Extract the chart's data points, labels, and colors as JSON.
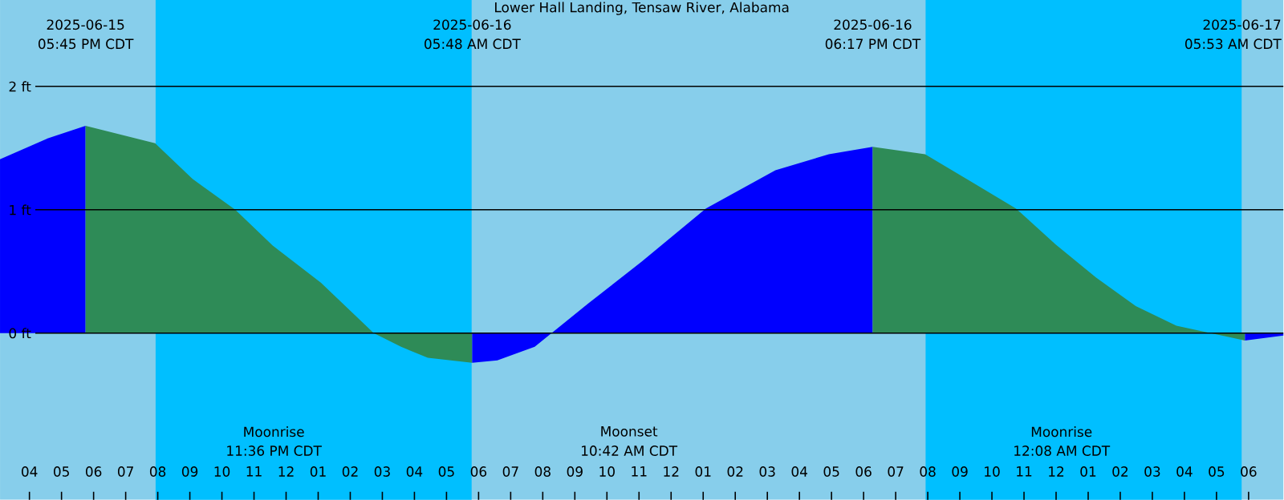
{
  "chart_data": {
    "type": "area",
    "title": "Lower Hall Landing, Tensaw River, Alabama",
    "xlim": [
      "2025-06-15T15:05",
      "2025-06-17T07:05"
    ],
    "ylim": [
      -1.35,
      2.7
    ],
    "yticks": [
      {
        "value": 0,
        "label": "0 ft"
      },
      {
        "value": 1,
        "label": "1 ft"
      },
      {
        "value": 2,
        "label": "2 ft"
      }
    ],
    "xticks": [
      {
        "value": "2025-06-15T16:00",
        "label": "04"
      },
      {
        "value": "2025-06-15T17:00",
        "label": "05"
      },
      {
        "value": "2025-06-15T18:00",
        "label": "06"
      },
      {
        "value": "2025-06-15T19:00",
        "label": "07"
      },
      {
        "value": "2025-06-15T20:00",
        "label": "08"
      },
      {
        "value": "2025-06-15T21:00",
        "label": "09"
      },
      {
        "value": "2025-06-15T22:00",
        "label": "10"
      },
      {
        "value": "2025-06-15T23:00",
        "label": "11"
      },
      {
        "value": "2025-06-16T00:00",
        "label": "12"
      },
      {
        "value": "2025-06-16T01:00",
        "label": "01"
      },
      {
        "value": "2025-06-16T02:00",
        "label": "02"
      },
      {
        "value": "2025-06-16T03:00",
        "label": "03"
      },
      {
        "value": "2025-06-16T04:00",
        "label": "04"
      },
      {
        "value": "2025-06-16T05:00",
        "label": "05"
      },
      {
        "value": "2025-06-16T06:00",
        "label": "06"
      },
      {
        "value": "2025-06-16T07:00",
        "label": "07"
      },
      {
        "value": "2025-06-16T08:00",
        "label": "08"
      },
      {
        "value": "2025-06-16T09:00",
        "label": "09"
      },
      {
        "value": "2025-06-16T10:00",
        "label": "10"
      },
      {
        "value": "2025-06-16T11:00",
        "label": "11"
      },
      {
        "value": "2025-06-16T12:00",
        "label": "12"
      },
      {
        "value": "2025-06-16T13:00",
        "label": "01"
      },
      {
        "value": "2025-06-16T14:00",
        "label": "02"
      },
      {
        "value": "2025-06-16T15:00",
        "label": "03"
      },
      {
        "value": "2025-06-16T16:00",
        "label": "04"
      },
      {
        "value": "2025-06-16T17:00",
        "label": "05"
      },
      {
        "value": "2025-06-16T18:00",
        "label": "06"
      },
      {
        "value": "2025-06-16T19:00",
        "label": "07"
      },
      {
        "value": "2025-06-16T20:00",
        "label": "08"
      },
      {
        "value": "2025-06-16T21:00",
        "label": "09"
      },
      {
        "value": "2025-06-16T22:00",
        "label": "10"
      },
      {
        "value": "2025-06-16T23:00",
        "label": "11"
      },
      {
        "value": "2025-06-17T00:00",
        "label": "12"
      },
      {
        "value": "2025-06-17T01:00",
        "label": "01"
      },
      {
        "value": "2025-06-17T02:00",
        "label": "02"
      },
      {
        "value": "2025-06-17T03:00",
        "label": "03"
      },
      {
        "value": "2025-06-17T04:00",
        "label": "04"
      },
      {
        "value": "2025-06-17T05:00",
        "label": "05"
      },
      {
        "value": "2025-06-17T06:00",
        "label": "06"
      }
    ],
    "grid": "y",
    "series": [
      {
        "color": "#0000ff",
        "x": [
          "2025-06-15T15:05",
          "2025-06-15T16:35",
          "2025-06-15T17:45"
        ],
        "values": [
          1.41,
          1.58,
          1.68
        ]
      },
      {
        "color": "#2e8b57",
        "x": [
          "2025-06-15T17:45",
          "2025-06-15T19:55",
          "2025-06-15T21:05",
          "2025-06-15T22:25",
          "2025-06-15T23:35",
          "2025-06-16T01:05",
          "2025-06-16T02:44",
          "2025-06-16T03:35",
          "2025-06-16T04:25",
          "2025-06-16T05:48"
        ],
        "values": [
          1.68,
          1.54,
          1.25,
          1.0,
          0.71,
          0.41,
          0.0,
          -0.11,
          -0.2,
          -0.24
        ]
      },
      {
        "color": "#0000ff",
        "x": [
          "2025-06-16T05:48",
          "2025-06-16T06:35",
          "2025-06-16T07:45",
          "2025-06-16T09:25",
          "2025-06-16T11:05",
          "2025-06-16T13:05",
          "2025-06-16T15:15",
          "2025-06-16T16:55",
          "2025-06-16T18:17"
        ],
        "values": [
          -0.24,
          -0.22,
          -0.11,
          0.24,
          0.58,
          1.01,
          1.32,
          1.45,
          1.51
        ]
      },
      {
        "color": "#2e8b57",
        "x": [
          "2025-06-16T18:17",
          "2025-06-16T19:55",
          "2025-06-16T21:20",
          "2025-06-16T22:45",
          "2025-06-16T23:59",
          "2025-06-17T01:15",
          "2025-06-17T02:29",
          "2025-06-17T03:45",
          "2025-06-17T05:53"
        ],
        "values": [
          1.51,
          1.45,
          1.23,
          1.01,
          0.72,
          0.45,
          0.22,
          0.06,
          -0.06
        ]
      },
      {
        "color": "#0000ff",
        "x": [
          "2025-06-17T05:53",
          "2025-06-17T07:05"
        ],
        "values": [
          -0.06,
          -0.02
        ]
      }
    ],
    "bands": [
      {
        "axis": "x",
        "from": "2025-06-15T19:56",
        "to": "2025-06-16T05:47",
        "color": "#00bfff"
      },
      {
        "axis": "x",
        "from": "2025-06-16T19:56",
        "to": "2025-06-17T05:47",
        "color": "#00bfff"
      }
    ],
    "annotations": [
      "2025-06-15",
      "05:45 PM CDT",
      "2025-06-16",
      "05:48 AM CDT",
      "2025-06-16",
      "06:17 PM CDT",
      "2025-06-17",
      "05:53 AM CDT",
      "Moonrise",
      "11:36 PM CDT",
      "Moonset",
      "10:42 AM CDT",
      "Moonrise",
      "12:08 AM CDT"
    ]
  }
}
